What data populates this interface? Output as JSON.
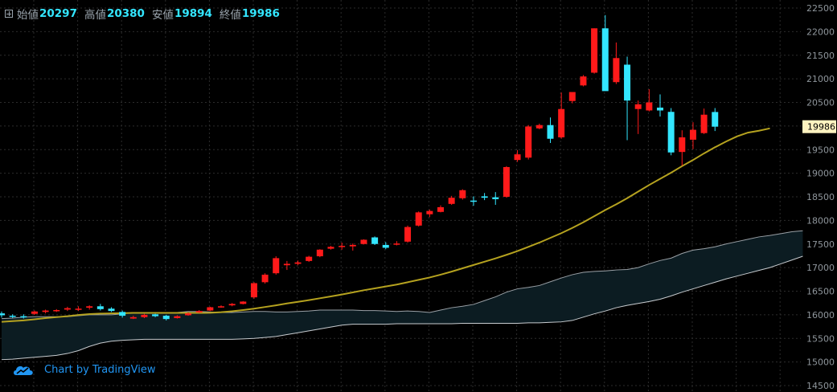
{
  "header": {
    "expand_icon": "plus-square-icon",
    "open_label": "始値",
    "open_value": "20297",
    "high_label": "高値",
    "high_value": "20380",
    "low_label": "安値",
    "low_value": "19894",
    "close_label": "終値",
    "close_value": "19986"
  },
  "watermark": {
    "text": "Chart by TradingView",
    "icon": "tradingview-cloud-icon"
  },
  "colors": {
    "up": "#ff1a1a",
    "down": "#33e6ff",
    "ma": "#b5a21f",
    "band_upper": "#9aa0a6",
    "band_lower": "#c8ccd0",
    "band_fill": "#0c1c22",
    "grid": "#2c2c2c",
    "axis_text": "#8f969c",
    "price_tag_bg": "#fff3c0"
  },
  "chart_data": {
    "type": "candlestick",
    "ylim": [
      14500,
      22500
    ],
    "yticks": [
      14500,
      15000,
      15500,
      16000,
      16500,
      17000,
      17500,
      18000,
      18500,
      19000,
      19500,
      20000,
      20500,
      21000,
      21500,
      22000,
      22500
    ],
    "last_price_label": "19986",
    "candles": [
      [
        16030,
        16070,
        15940,
        15990
      ],
      [
        15980,
        16010,
        15930,
        15960
      ],
      [
        15970,
        16010,
        15920,
        15950
      ],
      [
        16020,
        16090,
        16000,
        16070
      ],
      [
        16060,
        16110,
        16030,
        16090
      ],
      [
        16080,
        16120,
        16060,
        16100
      ],
      [
        16110,
        16170,
        16080,
        16140
      ],
      [
        16120,
        16180,
        16080,
        16130
      ],
      [
        16150,
        16200,
        16110,
        16180
      ],
      [
        16180,
        16230,
        16090,
        16120
      ],
      [
        16130,
        16160,
        16060,
        16080
      ],
      [
        16060,
        16090,
        15940,
        15980
      ],
      [
        15920,
        15980,
        15910,
        15950
      ],
      [
        15950,
        16020,
        15930,
        16000
      ],
      [
        16010,
        16020,
        15950,
        15970
      ],
      [
        15980,
        16000,
        15880,
        15910
      ],
      [
        15930,
        15990,
        15920,
        15970
      ],
      [
        15990,
        16050,
        15980,
        16030
      ],
      [
        16050,
        16100,
        16040,
        16080
      ],
      [
        16090,
        16170,
        16080,
        16160
      ],
      [
        16170,
        16200,
        16150,
        16180
      ],
      [
        16200,
        16250,
        16180,
        16230
      ],
      [
        16230,
        16290,
        16220,
        16280
      ],
      [
        16370,
        16690,
        16340,
        16670
      ],
      [
        16690,
        16880,
        16660,
        16850
      ],
      [
        16880,
        17240,
        16850,
        17200
      ],
      [
        17050,
        17140,
        16950,
        17080
      ],
      [
        17080,
        17150,
        17050,
        17110
      ],
      [
        17140,
        17250,
        17120,
        17230
      ],
      [
        17240,
        17390,
        17220,
        17380
      ],
      [
        17400,
        17460,
        17380,
        17440
      ],
      [
        17440,
        17530,
        17380,
        17460
      ],
      [
        17450,
        17510,
        17360,
        17480
      ],
      [
        17500,
        17600,
        17490,
        17590
      ],
      [
        17640,
        17660,
        17480,
        17500
      ],
      [
        17480,
        17540,
        17390,
        17420
      ],
      [
        17490,
        17560,
        17470,
        17510
      ],
      [
        17550,
        17890,
        17530,
        17860
      ],
      [
        17890,
        18190,
        17870,
        18170
      ],
      [
        18130,
        18230,
        18070,
        18200
      ],
      [
        18180,
        18320,
        18170,
        18280
      ],
      [
        18350,
        18520,
        18330,
        18480
      ],
      [
        18470,
        18660,
        18440,
        18640
      ],
      [
        18420,
        18510,
        18310,
        18400
      ],
      [
        18510,
        18580,
        18430,
        18480
      ],
      [
        18490,
        18600,
        18330,
        18450
      ],
      [
        18500,
        19150,
        18480,
        19130
      ],
      [
        19280,
        19490,
        19240,
        19400
      ],
      [
        19330,
        20020,
        19290,
        19990
      ],
      [
        19950,
        20050,
        19930,
        20020
      ],
      [
        20020,
        20180,
        19640,
        19730
      ],
      [
        19760,
        20710,
        19730,
        20360
      ],
      [
        20530,
        20690,
        20480,
        20720
      ],
      [
        20860,
        21080,
        20840,
        21050
      ],
      [
        21130,
        22070,
        21110,
        22070
      ],
      [
        22070,
        22350,
        20780,
        20740
      ],
      [
        20930,
        21770,
        20890,
        21440
      ],
      [
        21300,
        21470,
        19700,
        20540
      ],
      [
        20360,
        20540,
        19830,
        20460
      ],
      [
        20330,
        20780,
        20310,
        20500
      ],
      [
        20390,
        20670,
        20200,
        20330
      ],
      [
        20300,
        20380,
        19380,
        19440
      ],
      [
        19450,
        19910,
        19160,
        19760
      ],
      [
        19710,
        20080,
        19510,
        19920
      ],
      [
        19850,
        20370,
        19830,
        20240
      ],
      [
        20297,
        20380,
        19894,
        19986
      ]
    ],
    "moving_average": [
      15850,
      15865,
      15880,
      15905,
      15930,
      15950,
      15970,
      15995,
      16015,
      16025,
      16030,
      16035,
      16040,
      16040,
      16040,
      16040,
      16040,
      16040,
      16040,
      16042,
      16055,
      16075,
      16100,
      16130,
      16165,
      16200,
      16240,
      16275,
      16310,
      16350,
      16390,
      16430,
      16475,
      16520,
      16560,
      16600,
      16640,
      16690,
      16740,
      16790,
      16850,
      16915,
      16985,
      17055,
      17125,
      17195,
      17270,
      17350,
      17440,
      17530,
      17630,
      17730,
      17840,
      17960,
      18090,
      18220,
      18340,
      18470,
      18610,
      18750,
      18880,
      19010,
      19150,
      19280,
      19420,
      19550,
      19670,
      19780,
      19860,
      19900,
      19950
    ],
    "band_upper": [
      15920,
      15930,
      15950,
      15960,
      15960,
      15960,
      15960,
      15980,
      16000,
      16000,
      16000,
      16020,
      16050,
      16050,
      16050,
      16050,
      16050,
      16070,
      16070,
      16060,
      16050,
      16050,
      16060,
      16070,
      16070,
      16060,
      16060,
      16070,
      16080,
      16100,
      16100,
      16100,
      16100,
      16090,
      16090,
      16080,
      16070,
      16080,
      16070,
      16050,
      16100,
      16150,
      16180,
      16220,
      16300,
      16380,
      16480,
      16550,
      16580,
      16620,
      16700,
      16780,
      16850,
      16900,
      16920,
      16930,
      16950,
      16960,
      17000,
      17080,
      17150,
      17200,
      17300,
      17370,
      17400,
      17440,
      17500,
      17550,
      17600,
      17650,
      17680,
      17720,
      17760,
      17780
    ],
    "band_lower": [
      15050,
      15060,
      15080,
      15100,
      15120,
      15140,
      15180,
      15240,
      15330,
      15400,
      15440,
      15460,
      15470,
      15480,
      15480,
      15480,
      15480,
      15480,
      15480,
      15480,
      15480,
      15480,
      15490,
      15500,
      15520,
      15540,
      15580,
      15620,
      15660,
      15700,
      15740,
      15780,
      15800,
      15800,
      15800,
      15800,
      15810,
      15810,
      15810,
      15810,
      15810,
      15810,
      15820,
      15820,
      15820,
      15820,
      15820,
      15820,
      15830,
      15830,
      15840,
      15850,
      15880,
      15950,
      16020,
      16080,
      16150,
      16200,
      16240,
      16280,
      16330,
      16400,
      16480,
      16550,
      16620,
      16690,
      16760,
      16820,
      16880,
      16940,
      17000,
      17080,
      17160,
      17240
    ]
  }
}
